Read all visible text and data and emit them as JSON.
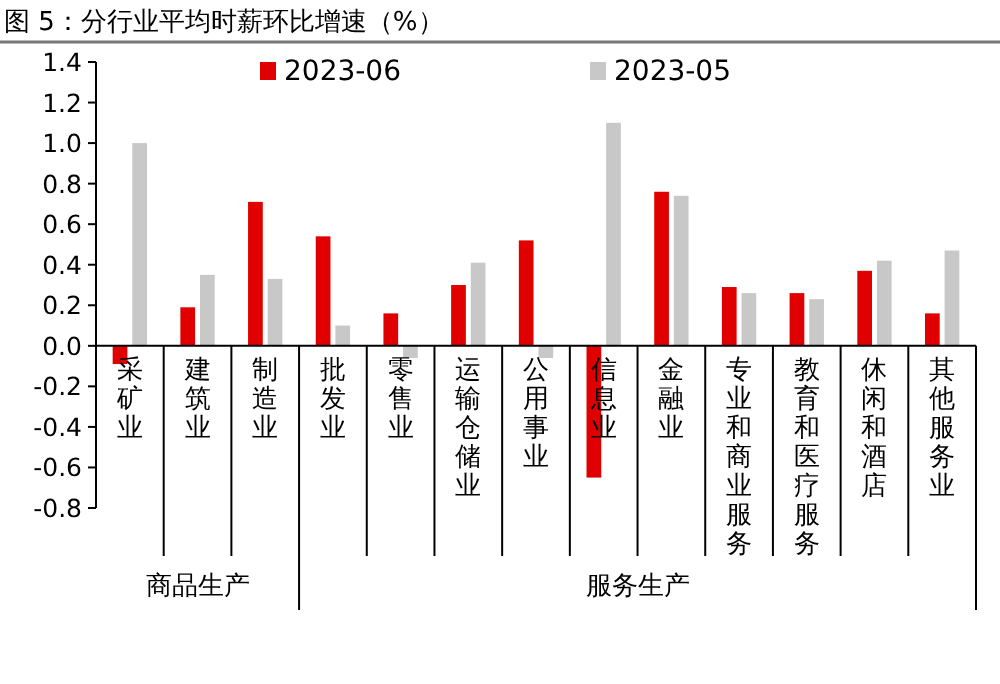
{
  "chart_data": {
    "type": "bar",
    "title": "图 5：分行业平均时薪环比增速（%）",
    "categories": [
      "采矿业",
      "建筑业",
      "制造业",
      "批发业",
      "零售业",
      "运输仓储业",
      "公用事业",
      "信息业",
      "金融业",
      "专业和商业服务",
      "教育和医疗服务",
      "休闲和酒店",
      "其他服务业"
    ],
    "series": [
      {
        "name": "2023-06",
        "color": "#e00000",
        "values": [
          -0.09,
          0.19,
          0.71,
          0.54,
          0.16,
          0.3,
          0.52,
          -0.65,
          0.76,
          0.29,
          0.26,
          0.37,
          0.16
        ]
      },
      {
        "name": "2023-05",
        "color": "#c8c8c8",
        "values": [
          1.0,
          0.35,
          0.33,
          0.1,
          -0.06,
          0.41,
          -0.06,
          1.1,
          0.74,
          0.26,
          0.23,
          0.42,
          0.47
        ]
      }
    ],
    "annotations": [
      "商品生产",
      "服务生产"
    ],
    "ylim": [
      -0.8,
      1.4
    ],
    "yticks": [
      {
        "value": -0.8,
        "label": "-0.8"
      },
      {
        "value": -0.6,
        "label": "-0.6"
      },
      {
        "value": -0.4,
        "label": "-0.4"
      },
      {
        "value": -0.2,
        "label": "-0.2"
      },
      {
        "value": 0,
        "label": "0.0"
      },
      {
        "value": 0.2,
        "label": "0.2"
      },
      {
        "value": 0.4,
        "label": "0.4"
      },
      {
        "value": 0.6,
        "label": "0.6"
      },
      {
        "value": 0.8,
        "label": "0.8"
      },
      {
        "value": 1.0,
        "label": "1.0"
      },
      {
        "value": 1.2,
        "label": "1.2"
      },
      {
        "value": 1.4,
        "label": "1.4"
      }
    ],
    "legend": "top",
    "grid": false
  }
}
